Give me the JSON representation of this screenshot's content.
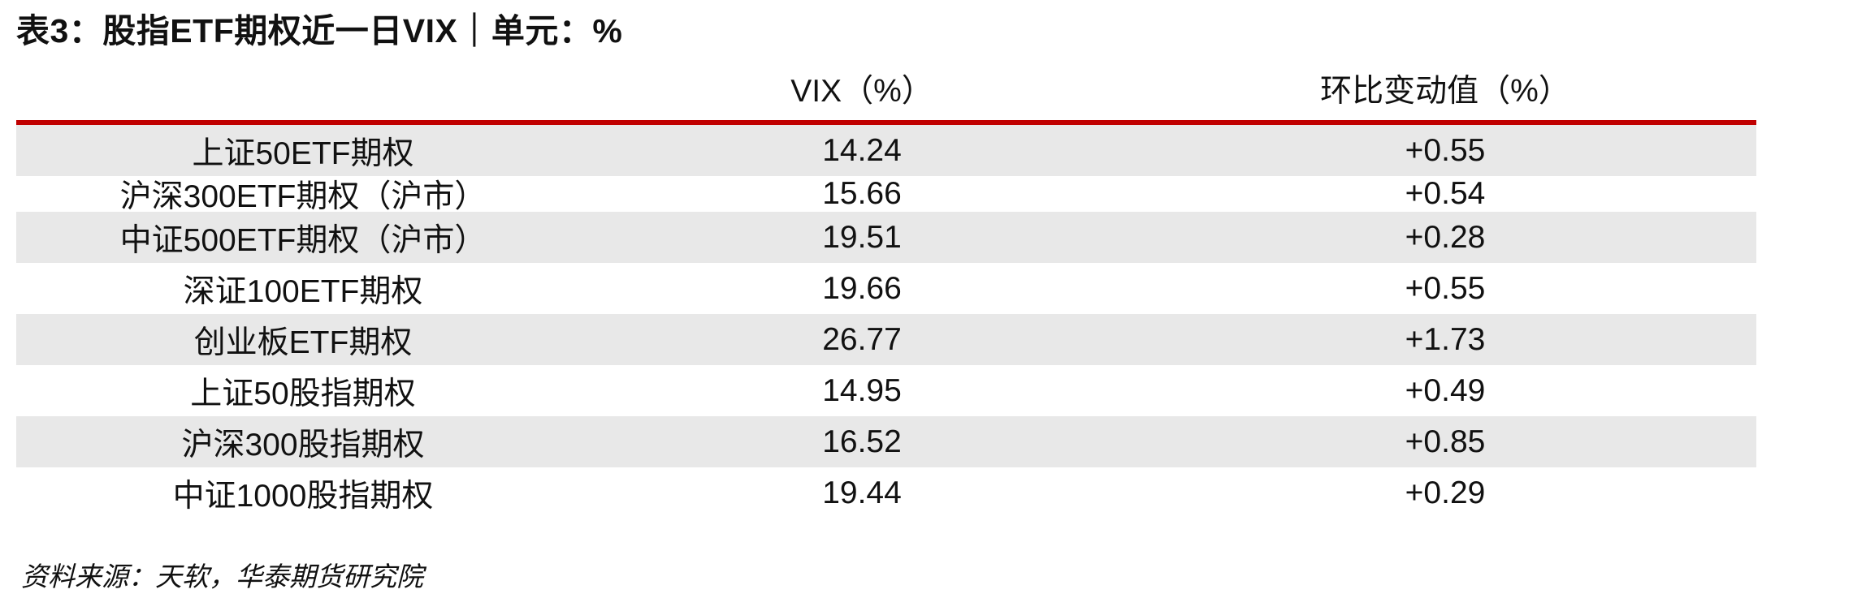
{
  "title": "表3：股指ETF期权近一日VIX｜单元：%",
  "table": {
    "headers": [
      "",
      "VIX（%）",
      "环比变动值（%）"
    ],
    "rows": [
      {
        "name": "上证50ETF期权",
        "vix": "14.24",
        "change": "+0.55"
      },
      {
        "name": "沪深300ETF期权（沪市）",
        "vix": "15.66",
        "change": "+0.54"
      },
      {
        "name": "中证500ETF期权（沪市）",
        "vix": "19.51",
        "change": "+0.28"
      },
      {
        "name": "深证100ETF期权",
        "vix": "19.66",
        "change": "+0.55"
      },
      {
        "name": "创业板ETF期权",
        "vix": "26.77",
        "change": "+1.73"
      },
      {
        "name": "上证50股指期权",
        "vix": "14.95",
        "change": "+0.49"
      },
      {
        "name": "沪深300股指期权",
        "vix": "16.52",
        "change": "+0.85"
      },
      {
        "name": "中证1000股指期权",
        "vix": "19.44",
        "change": "+0.29"
      }
    ]
  },
  "source": "资料来源：天软，华泰期货研究院",
  "colors": {
    "header_rule": "#c00000",
    "row_shade": "#e8e8e8",
    "text": "#111111"
  }
}
